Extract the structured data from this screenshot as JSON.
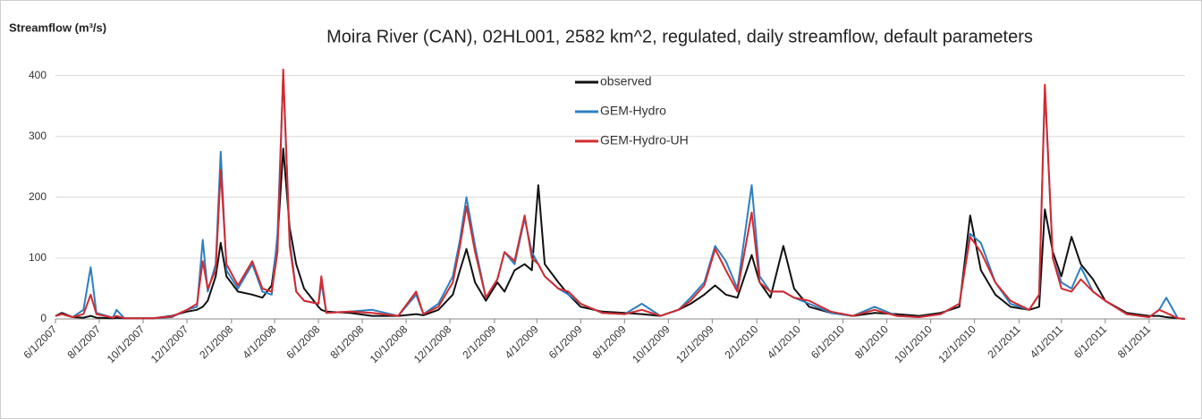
{
  "chart_data": {
    "type": "line",
    "title": "Moira River (CAN), 02HL001, 2582 km^2, regulated, daily streamflow, default parameters",
    "y_label": "Streamflow (m³/s)",
    "x": [
      "6/1/2007",
      "6/10/2007",
      "6/25/2007",
      "7/10/2007",
      "7/20/2007",
      "7/28/2007",
      "8/20/2007",
      "8/25/2007",
      "9/5/2007",
      "10/15/2007",
      "11/10/2007",
      "12/1/2007",
      "12/15/2007",
      "12/23/2007",
      "12/30/2007",
      "1/10/2008",
      "1/17/2008",
      "1/25/2008",
      "2/10/2008",
      "3/1/2008",
      "3/15/2008",
      "3/28/2008",
      "4/5/2008",
      "4/13/2008",
      "4/22/2008",
      "5/1/2008",
      "5/12/2008",
      "6/1/2008",
      "6/5/2008",
      "6/12/2008",
      "7/15/2008",
      "8/15/2008",
      "9/20/2008",
      "10/15/2008",
      "10/25/2008",
      "11/15/2008",
      "12/5/2008",
      "12/15/2008",
      "12/24/2008",
      "1/5/2009",
      "1/20/2009",
      "2/5/2009",
      "2/15/2009",
      "3/1/2009",
      "3/15/2009",
      "3/25/2009",
      "4/3/2009",
      "4/12/2009",
      "5/1/2009",
      "5/15/2009",
      "6/1/2009",
      "7/1/2009",
      "8/1/2009",
      "8/25/2009",
      "9/20/2009",
      "10/15/2009",
      "11/1/2009",
      "11/20/2009",
      "12/5/2009",
      "12/20/2009",
      "1/5/2010",
      "1/25/2010",
      "2/5/2010",
      "2/20/2010",
      "3/10/2010",
      "3/25/2010",
      "4/15/2010",
      "5/15/2010",
      "6/15/2010",
      "7/15/2010",
      "8/15/2010",
      "9/15/2010",
      "10/15/2010",
      "11/10/2010",
      "11/25/2010",
      "12/10/2010",
      "12/30/2010",
      "1/20/2011",
      "2/15/2011",
      "3/1/2011",
      "3/9/2011",
      "3/20/2011",
      "4/1/2011",
      "4/15/2011",
      "4/28/2011",
      "5/15/2011",
      "6/1/2011",
      "7/1/2011",
      "8/1/2011",
      "8/15/2011",
      "8/25/2011",
      "9/10/2011",
      "9/20/2011"
    ],
    "series": [
      {
        "name": "observed",
        "color": "#111111",
        "values": [
          5,
          10,
          3,
          2,
          5,
          2,
          1,
          2,
          1,
          1,
          5,
          12,
          15,
          20,
          30,
          70,
          125,
          70,
          45,
          40,
          35,
          55,
          130,
          280,
          150,
          90,
          50,
          20,
          15,
          12,
          10,
          5,
          5,
          8,
          6,
          15,
          40,
          80,
          115,
          60,
          30,
          60,
          45,
          80,
          90,
          80,
          220,
          90,
          60,
          40,
          20,
          12,
          10,
          8,
          5,
          15,
          25,
          40,
          55,
          40,
          35,
          105,
          60,
          35,
          120,
          50,
          20,
          10,
          5,
          10,
          8,
          5,
          10,
          20,
          170,
          80,
          40,
          20,
          15,
          20,
          180,
          110,
          70,
          135,
          90,
          65,
          30,
          10,
          5,
          5,
          3,
          1,
          0
        ]
      },
      {
        "name": "GEM-Hydro",
        "color": "#2e7fc0",
        "values": [
          5,
          8,
          3,
          15,
          85,
          10,
          2,
          15,
          1,
          1,
          3,
          15,
          20,
          130,
          45,
          90,
          275,
          80,
          50,
          90,
          45,
          40,
          140,
          400,
          130,
          45,
          30,
          25,
          60,
          10,
          12,
          15,
          5,
          40,
          8,
          25,
          70,
          130,
          200,
          120,
          35,
          65,
          110,
          90,
          165,
          110,
          90,
          70,
          50,
          40,
          25,
          10,
          8,
          25,
          5,
          15,
          35,
          60,
          120,
          95,
          50,
          220,
          70,
          45,
          45,
          35,
          25,
          10,
          5,
          20,
          5,
          3,
          8,
          25,
          140,
          125,
          60,
          25,
          15,
          40,
          380,
          100,
          60,
          50,
          85,
          45,
          30,
          8,
          3,
          15,
          35,
          1,
          0
        ]
      },
      {
        "name": "GEM-Hydro-UH",
        "color": "#d42a2f",
        "values": [
          5,
          8,
          3,
          8,
          40,
          8,
          2,
          5,
          1,
          1,
          4,
          15,
          25,
          95,
          50,
          80,
          245,
          90,
          55,
          95,
          50,
          45,
          110,
          410,
          120,
          45,
          30,
          25,
          70,
          10,
          12,
          10,
          5,
          45,
          8,
          20,
          60,
          120,
          185,
          110,
          35,
          65,
          110,
          95,
          170,
          100,
          90,
          70,
          50,
          45,
          25,
          10,
          8,
          15,
          5,
          15,
          30,
          55,
          115,
          80,
          45,
          175,
          60,
          45,
          45,
          35,
          30,
          12,
          5,
          15,
          5,
          3,
          8,
          25,
          135,
          110,
          60,
          30,
          15,
          40,
          385,
          100,
          50,
          45,
          65,
          45,
          30,
          8,
          3,
          15,
          10,
          1,
          0
        ]
      }
    ],
    "xlim": [
      "6/1/2007",
      "9/20/2011"
    ],
    "xticks": [
      "6/1/2007",
      "8/1/2007",
      "10/1/2007",
      "12/1/2007",
      "2/1/2008",
      "4/1/2008",
      "6/1/2008",
      "8/1/2008",
      "10/1/2008",
      "12/1/2008",
      "2/1/2009",
      "4/1/2009",
      "6/1/2009",
      "8/1/2009",
      "10/1/2009",
      "12/1/2009",
      "2/1/2010",
      "4/1/2010",
      "6/1/2010",
      "8/1/2010",
      "10/1/2010",
      "12/1/2010",
      "2/1/2011",
      "4/1/2011",
      "6/1/2011",
      "8/1/2011"
    ],
    "ylim": [
      0,
      420
    ],
    "yticks": [
      0,
      100,
      200,
      300,
      400
    ],
    "grid": true,
    "legend": "top"
  }
}
